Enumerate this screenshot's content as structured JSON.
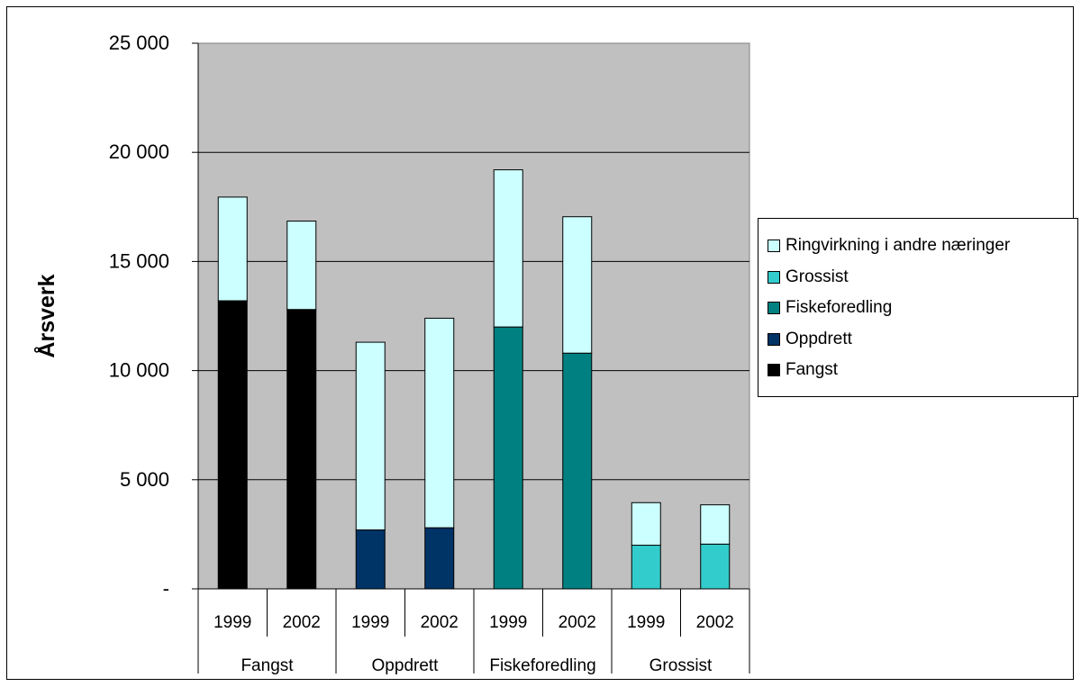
{
  "chart_data": {
    "type": "bar",
    "stacked": true,
    "title": "",
    "xlabel": "",
    "ylabel": "Årsverk",
    "ylim": [
      0,
      25000
    ],
    "yticks": [
      {
        "value": 0,
        "label": "-"
      },
      {
        "value": 5000,
        "label": "5 000"
      },
      {
        "value": 10000,
        "label": "10 000"
      },
      {
        "value": 15000,
        "label": "15 000"
      },
      {
        "value": 20000,
        "label": "20 000"
      },
      {
        "value": 25000,
        "label": "25 000"
      }
    ],
    "grid": true,
    "legend_position": "right",
    "groups": [
      "Fangst",
      "Oppdrett",
      "Fiskeforedling",
      "Grossist"
    ],
    "categories": [
      "1999",
      "2002",
      "1999",
      "2002",
      "1999",
      "2002",
      "1999",
      "2002"
    ],
    "series": [
      {
        "name": "Fangst",
        "color": "#000000",
        "values": [
          13200,
          12800,
          0,
          0,
          0,
          0,
          0,
          0
        ]
      },
      {
        "name": "Oppdrett",
        "color": "#003366",
        "values": [
          0,
          0,
          2700,
          2800,
          0,
          0,
          0,
          0
        ]
      },
      {
        "name": "Fiskeforedling",
        "color": "#008080",
        "values": [
          0,
          0,
          0,
          0,
          12000,
          10800,
          0,
          0
        ]
      },
      {
        "name": "Grossist",
        "color": "#33CCCC",
        "values": [
          0,
          0,
          0,
          0,
          0,
          0,
          2000,
          2050
        ]
      },
      {
        "name": "Ringvirkning i andre næringer",
        "color": "#CCFFFF",
        "values": [
          4750,
          4050,
          8600,
          9600,
          7200,
          6250,
          1950,
          1800
        ]
      }
    ],
    "legend_order": [
      "Ringvirkning i andre næringer",
      "Grossist",
      "Fiskeforedling",
      "Oppdrett",
      "Fangst"
    ],
    "plot_background": "#C0C0C0"
  }
}
